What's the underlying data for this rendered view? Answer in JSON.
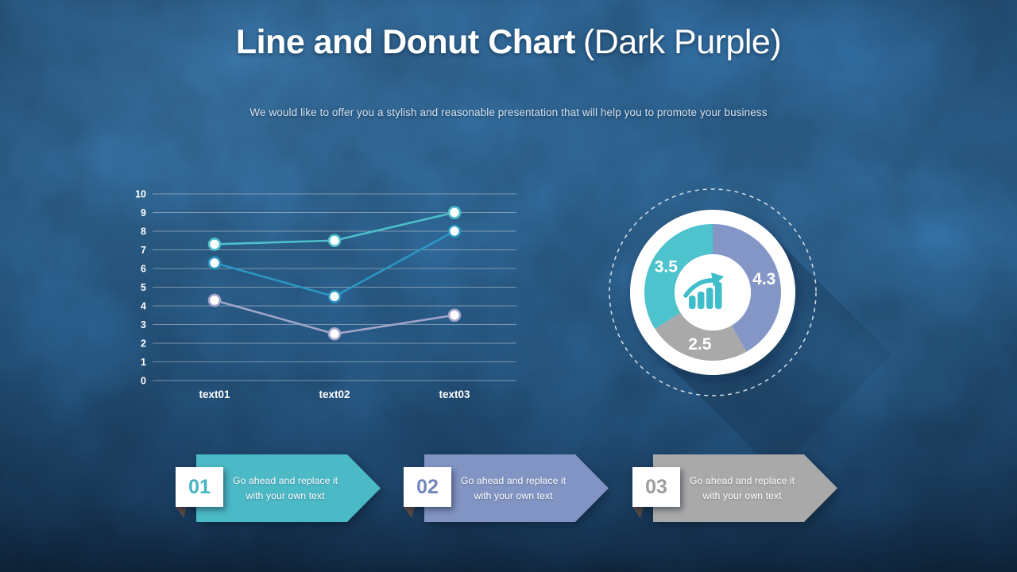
{
  "slide": {
    "title_bold": "Line and Donut Chart",
    "title_light": "(Dark Purple)",
    "subtitle": "We would like to offer you a stylish and reasonable presentation that will help you to promote your business",
    "background_color": "#235078",
    "title_color": "#ffffff",
    "subtitle_color": "#d5e3f0"
  },
  "chart_data": [
    {
      "type": "line",
      "title": "",
      "categories": [
        "text01",
        "text02",
        "text03"
      ],
      "series": [
        {
          "name": "series-teal",
          "color": "#4cc0cb",
          "values": [
            7.3,
            7.5,
            9.0
          ]
        },
        {
          "name": "series-blue",
          "color": "#2b97c3",
          "values": [
            6.3,
            4.5,
            8.0
          ]
        },
        {
          "name": "series-lavender",
          "color": "#a2a5c9",
          "values": [
            4.3,
            2.5,
            3.5
          ]
        }
      ],
      "xlabel": "",
      "ylabel": "",
      "ylim": [
        0,
        10
      ],
      "ytick_step": 1,
      "grid": true,
      "legend": false,
      "gridline_color": "rgba(205,213,220,0.50)",
      "tick_label_color": "#ffffff",
      "marker_fill": "#ffffff"
    },
    {
      "type": "pie",
      "donut": true,
      "start_angle_deg": 0,
      "slices": [
        {
          "label": "4.3",
          "value": 4.3,
          "color": "#8396c6"
        },
        {
          "label": "2.5",
          "value": 2.5,
          "color": "#a9a9a9"
        },
        {
          "label": "3.5",
          "value": 3.5,
          "color": "#4cc3cd"
        }
      ],
      "label_color": "#ffffff",
      "ring_color": "#ffffff",
      "dashed_outline_color": "#e8eef4",
      "center_icon": "growth-chart-icon",
      "icon_color": "#3fbdca"
    }
  ],
  "banners": [
    {
      "number": "01",
      "text": "Go ahead and replace it with  your own text",
      "color": "#4bb9c6",
      "number_color": "#45b4c2"
    },
    {
      "number": "02",
      "text": "Go ahead and replace it with  your own text",
      "color": "#8294c3",
      "number_color": "#7386bb"
    },
    {
      "number": "03",
      "text": "Go ahead and replace it with  your own text",
      "color": "#a9a9a9",
      "number_color": "#9d9d9d"
    }
  ]
}
